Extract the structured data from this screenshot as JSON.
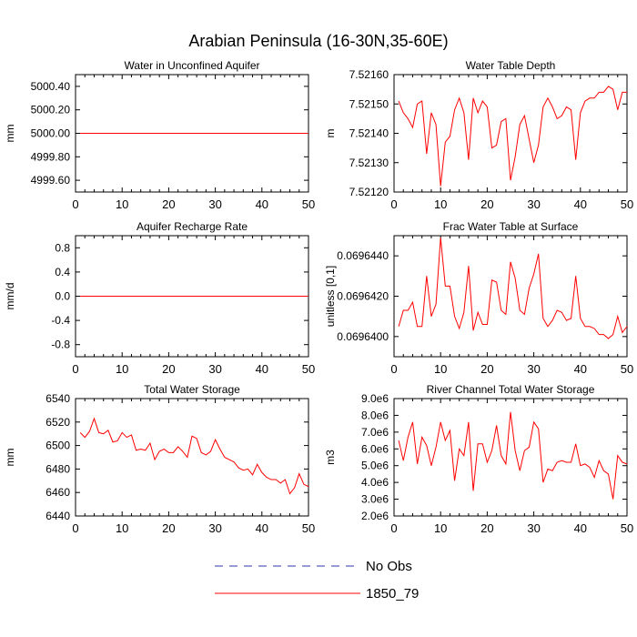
{
  "title": "Arabian Peninsula (16-30N,35-60E)",
  "legend": {
    "entries": [
      {
        "label": "No Obs",
        "color": "#3333aa",
        "style": "dashed"
      },
      {
        "label": "1850_79",
        "color": "#ff0000",
        "style": "solid"
      }
    ]
  },
  "chart_data": [
    {
      "type": "line",
      "title": "Water in Unconfined Aquifer",
      "ylabel": "mm",
      "xlim": [
        0,
        50
      ],
      "ylim": [
        4999.5,
        5000.5
      ],
      "xticks": [
        0,
        10,
        20,
        30,
        40,
        50
      ],
      "xtick_labels": [
        "0",
        "10",
        "20",
        "30",
        "40",
        "50"
      ],
      "yticks": [
        4999.6,
        4999.8,
        5000.0,
        5000.2,
        5000.4
      ],
      "ytick_labels": [
        "4999.60",
        "4999.80",
        "5000.00",
        "5000.20",
        "5000.40"
      ],
      "x": [
        1,
        2,
        3,
        4,
        5,
        6,
        7,
        8,
        9,
        10,
        11,
        12,
        13,
        14,
        15,
        16,
        17,
        18,
        19,
        20,
        21,
        22,
        23,
        24,
        25,
        26,
        27,
        28,
        29,
        30,
        31,
        32,
        33,
        34,
        35,
        36,
        37,
        38,
        39,
        40,
        41,
        42,
        43,
        44,
        45,
        46,
        47,
        48,
        49,
        50
      ],
      "series": [
        {
          "name": "1850_79",
          "values": [
            5000,
            5000,
            5000,
            5000,
            5000,
            5000,
            5000,
            5000,
            5000,
            5000,
            5000,
            5000,
            5000,
            5000,
            5000,
            5000,
            5000,
            5000,
            5000,
            5000,
            5000,
            5000,
            5000,
            5000,
            5000,
            5000,
            5000,
            5000,
            5000,
            5000,
            5000,
            5000,
            5000,
            5000,
            5000,
            5000,
            5000,
            5000,
            5000,
            5000,
            5000,
            5000,
            5000,
            5000,
            5000,
            5000,
            5000,
            5000,
            5000,
            5000
          ]
        }
      ]
    },
    {
      "type": "line",
      "title": "Water Table Depth",
      "ylabel": "m",
      "xlim": [
        0,
        50
      ],
      "ylim": [
        7.5212,
        7.5216
      ],
      "xticks": [
        0,
        10,
        20,
        30,
        40,
        50
      ],
      "xtick_labels": [
        "0",
        "10",
        "20",
        "30",
        "40",
        "50"
      ],
      "yticks": [
        7.5212,
        7.5213,
        7.5214,
        7.5215,
        7.5216
      ],
      "ytick_labels": [
        "7.52120",
        "7.52130",
        "7.52140",
        "7.52150",
        "7.52160"
      ],
      "x": [
        1,
        2,
        3,
        4,
        5,
        6,
        7,
        8,
        9,
        10,
        11,
        12,
        13,
        14,
        15,
        16,
        17,
        18,
        19,
        20,
        21,
        22,
        23,
        24,
        25,
        26,
        27,
        28,
        29,
        30,
        31,
        32,
        33,
        34,
        35,
        36,
        37,
        38,
        39,
        40,
        41,
        42,
        43,
        44,
        45,
        46,
        47,
        48,
        49,
        50
      ],
      "series": [
        {
          "name": "1850_79",
          "values": [
            7.52151,
            7.52147,
            7.52145,
            7.52142,
            7.5215,
            7.52151,
            7.52133,
            7.52147,
            7.52143,
            7.52122,
            7.52137,
            7.52139,
            7.52148,
            7.52152,
            7.52147,
            7.52131,
            7.52152,
            7.52147,
            7.52151,
            7.52149,
            7.52135,
            7.52136,
            7.52144,
            7.52145,
            7.52124,
            7.52132,
            7.52143,
            7.52146,
            7.52138,
            7.5213,
            7.52136,
            7.52149,
            7.52152,
            7.52149,
            7.52145,
            7.52146,
            7.52149,
            7.52148,
            7.52131,
            7.52147,
            7.52151,
            7.52152,
            7.52152,
            7.52154,
            7.52154,
            7.52156,
            7.52155,
            7.52148,
            7.52154,
            7.52154
          ]
        }
      ]
    },
    {
      "type": "line",
      "title": "Aquifer Recharge Rate",
      "ylabel": "mm/d",
      "xlim": [
        0,
        50
      ],
      "ylim": [
        -1.0,
        1.0
      ],
      "xticks": [
        0,
        10,
        20,
        30,
        40,
        50
      ],
      "xtick_labels": [
        "0",
        "10",
        "20",
        "30",
        "40",
        "50"
      ],
      "yticks": [
        -0.8,
        -0.4,
        0,
        0.4,
        0.8
      ],
      "ytick_labels": [
        "-0.8",
        "-0.4",
        "0.0",
        "0.4",
        "0.8"
      ],
      "x": [
        1,
        2,
        3,
        4,
        5,
        6,
        7,
        8,
        9,
        10,
        11,
        12,
        13,
        14,
        15,
        16,
        17,
        18,
        19,
        20,
        21,
        22,
        23,
        24,
        25,
        26,
        27,
        28,
        29,
        30,
        31,
        32,
        33,
        34,
        35,
        36,
        37,
        38,
        39,
        40,
        41,
        42,
        43,
        44,
        45,
        46,
        47,
        48,
        49,
        50
      ],
      "series": [
        {
          "name": "1850_79",
          "values": [
            0,
            0,
            0,
            0,
            0,
            0,
            0,
            0,
            0,
            0,
            0,
            0,
            0,
            0,
            0,
            0,
            0,
            0,
            0,
            0,
            0,
            0,
            0,
            0,
            0,
            0,
            0,
            0,
            0,
            0,
            0,
            0,
            0,
            0,
            0,
            0,
            0,
            0,
            0,
            0,
            0,
            0,
            0,
            0,
            0,
            0,
            0,
            0,
            0,
            0
          ]
        }
      ]
    },
    {
      "type": "line",
      "title": "Frac Water Table at Surface",
      "ylabel": "unitless [0,1]",
      "xlim": [
        0,
        50
      ],
      "ylim": [
        0.069639,
        0.069645
      ],
      "xticks": [
        0,
        10,
        20,
        30,
        40,
        50
      ],
      "xtick_labels": [
        "0",
        "10",
        "20",
        "30",
        "40",
        "50"
      ],
      "yticks": [
        0.06964,
        0.069642,
        0.069644
      ],
      "ytick_labels": [
        "0.0696400",
        "0.0696420",
        "0.0696440"
      ],
      "x": [
        1,
        2,
        3,
        4,
        5,
        6,
        7,
        8,
        9,
        10,
        11,
        12,
        13,
        14,
        15,
        16,
        17,
        18,
        19,
        20,
        21,
        22,
        23,
        24,
        25,
        26,
        27,
        28,
        29,
        30,
        31,
        32,
        33,
        34,
        35,
        36,
        37,
        38,
        39,
        40,
        41,
        42,
        43,
        44,
        45,
        46,
        47,
        48,
        49,
        50
      ],
      "series": [
        {
          "name": "1850_79",
          "values": [
            0.0696405,
            0.0696413,
            0.0696413,
            0.0696417,
            0.0696405,
            0.0696405,
            0.069643,
            0.069641,
            0.0696416,
            0.0696449,
            0.0696425,
            0.0696425,
            0.069641,
            0.0696404,
            0.0696412,
            0.0696435,
            0.0696403,
            0.0696412,
            0.0696406,
            0.0696406,
            0.0696428,
            0.0696427,
            0.0696413,
            0.0696411,
            0.0696437,
            0.0696429,
            0.0696413,
            0.0696411,
            0.0696424,
            0.0696431,
            0.0696441,
            0.0696409,
            0.0696405,
            0.0696408,
            0.0696413,
            0.0696412,
            0.0696408,
            0.0696409,
            0.069643,
            0.0696409,
            0.0696405,
            0.0696405,
            0.0696404,
            0.0696401,
            0.0696401,
            0.0696399,
            0.0696401,
            0.069641,
            0.0696402,
            0.0696405
          ]
        }
      ]
    },
    {
      "type": "line",
      "title": "Total Water Storage",
      "ylabel": "mm",
      "xlim": [
        0,
        50
      ],
      "ylim": [
        6440,
        6540
      ],
      "xticks": [
        0,
        10,
        20,
        30,
        40,
        50
      ],
      "xtick_labels": [
        "0",
        "10",
        "20",
        "30",
        "40",
        "50"
      ],
      "yticks": [
        6440,
        6460,
        6480,
        6500,
        6520,
        6540
      ],
      "ytick_labels": [
        "6440",
        "6460",
        "6480",
        "6500",
        "6520",
        "6540"
      ],
      "x": [
        1,
        2,
        3,
        4,
        5,
        6,
        7,
        8,
        9,
        10,
        11,
        12,
        13,
        14,
        15,
        16,
        17,
        18,
        19,
        20,
        21,
        22,
        23,
        24,
        25,
        26,
        27,
        28,
        29,
        30,
        31,
        32,
        33,
        34,
        35,
        36,
        37,
        38,
        39,
        40,
        41,
        42,
        43,
        44,
        45,
        46,
        47,
        48,
        49,
        50
      ],
      "series": [
        {
          "name": "1850_79",
          "values": [
            6511,
            6507,
            6512,
            6523,
            6511,
            6510,
            6513,
            6503,
            6504,
            6511,
            6507,
            6509,
            6496,
            6497,
            6496,
            6502,
            6488,
            6495,
            6497,
            6494,
            6494,
            6499,
            6495,
            6490,
            6508,
            6506,
            6494,
            6492,
            6495,
            6505,
            6497,
            6490,
            6488,
            6486,
            6481,
            6479,
            6480,
            6475,
            6484,
            6477,
            6473,
            6471,
            6471,
            6468,
            6471,
            6459,
            6464,
            6476,
            6467,
            6465
          ]
        }
      ]
    },
    {
      "type": "line",
      "title": "River Channel Total Water Storage",
      "ylabel": "m3",
      "xlim": [
        0,
        50
      ],
      "ylim": [
        2000000,
        9000000
      ],
      "xticks": [
        0,
        10,
        20,
        30,
        40,
        50
      ],
      "xtick_labels": [
        "0",
        "10",
        "20",
        "30",
        "40",
        "50"
      ],
      "yticks": [
        2000000,
        3000000,
        4000000,
        5000000,
        6000000,
        7000000,
        8000000,
        9000000
      ],
      "ytick_labels": [
        "2.0e6",
        "3.0e6",
        "4.0e6",
        "5.0e6",
        "6.0e6",
        "7.0e6",
        "8.0e6",
        "9.0e6"
      ],
      "x": [
        1,
        2,
        3,
        4,
        5,
        6,
        7,
        8,
        9,
        10,
        11,
        12,
        13,
        14,
        15,
        16,
        17,
        18,
        19,
        20,
        21,
        22,
        23,
        24,
        25,
        26,
        27,
        28,
        29,
        30,
        31,
        32,
        33,
        34,
        35,
        36,
        37,
        38,
        39,
        40,
        41,
        42,
        43,
        44,
        45,
        46,
        47,
        48,
        49,
        50
      ],
      "series": [
        {
          "name": "1850_79",
          "values": [
            6500000,
            5300000,
            6700000,
            7600000,
            5100000,
            6700000,
            6200000,
            5000000,
            6100000,
            7600000,
            6500000,
            7100000,
            4100000,
            6000000,
            5600000,
            7600000,
            3500000,
            6300000,
            6300000,
            5200000,
            5900000,
            7400000,
            5600000,
            5100000,
            8200000,
            5900000,
            4700000,
            5900000,
            6100000,
            7600000,
            7200000,
            4000000,
            4800000,
            4700000,
            5200000,
            5300000,
            5200000,
            5200000,
            6300000,
            5000000,
            5100000,
            4900000,
            4300000,
            5300000,
            4700000,
            4500000,
            3000000,
            5600000,
            5200000,
            5100000
          ]
        }
      ]
    }
  ]
}
